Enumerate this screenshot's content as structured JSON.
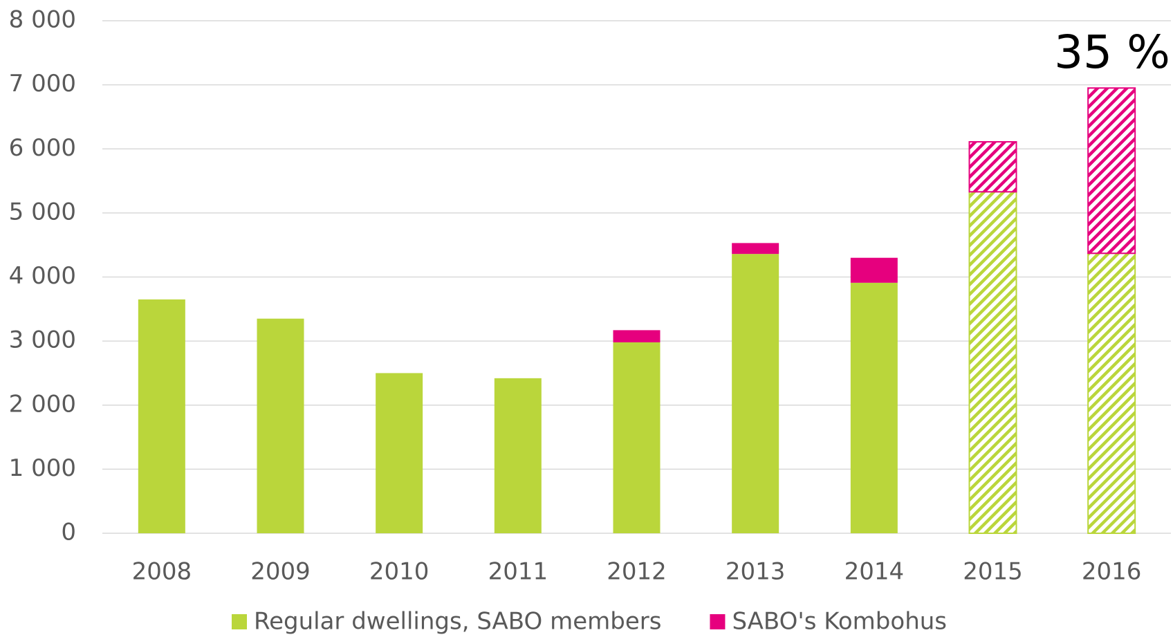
{
  "chart_data": {
    "type": "bar",
    "stacked": true,
    "categories": [
      "2008",
      "2009",
      "2010",
      "2011",
      "2012",
      "2013",
      "2014",
      "2015",
      "2016"
    ],
    "series": [
      {
        "name": "Regular dwellings, SABO members",
        "color": "#bad63b",
        "values": [
          3650,
          3350,
          2500,
          2420,
          2980,
          4360,
          3910,
          5330,
          4370
        ]
      },
      {
        "name": "SABO's Kombohus",
        "color": "#e6007e",
        "values": [
          null,
          null,
          null,
          null,
          190,
          170,
          390,
          780,
          2580
        ]
      }
    ],
    "hatched": [
      false,
      false,
      false,
      false,
      false,
      false,
      false,
      true,
      true
    ],
    "annotation": "35 %",
    "ylim": [
      0,
      8000
    ],
    "yticks": [
      0,
      {
        "value": 1000,
        "label": "1 000"
      },
      {
        "value": 2000,
        "label": "2 000"
      },
      {
        "value": 3000,
        "label": "3 000"
      },
      {
        "value": 4000,
        "label": "4 000"
      },
      {
        "value": 5000,
        "label": "5 000"
      },
      {
        "value": 6000,
        "label": "6 000"
      },
      {
        "value": 7000,
        "label": "7 000"
      },
      {
        "value": 8000,
        "label": "8 000"
      }
    ],
    "grid": true,
    "legend": "bottom"
  }
}
